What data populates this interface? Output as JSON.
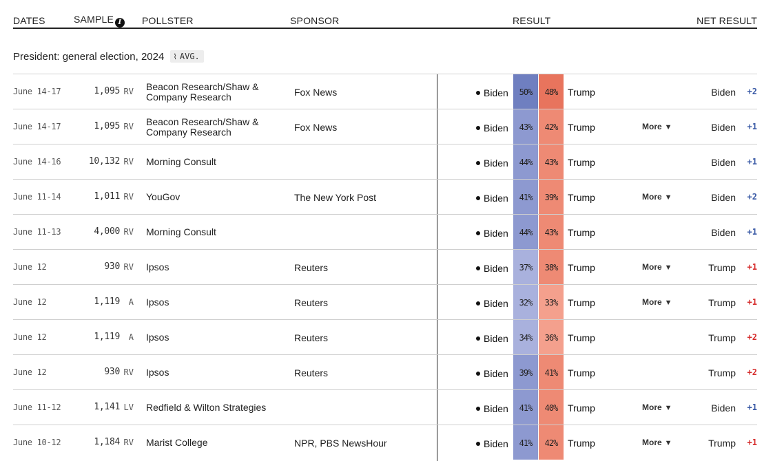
{
  "header": {
    "dates": "DATES",
    "sample": "SAMPLE",
    "pollster": "POLLSTER",
    "sponsor": "SPONSOR",
    "result": "RESULT",
    "net_result": "NET RESULT",
    "info_icon": "info-icon"
  },
  "section": {
    "title": "President: general election, 2024",
    "avg_label": "AVG.",
    "avg_icon": "pulse-icon"
  },
  "colors": {
    "dem_dark": "#6f7fc0",
    "dem_mid": "#8d99d0",
    "dem_light": "#a9b1dd",
    "rep_dark": "#e8745d",
    "rep_mid": "#ee8a74",
    "rep_light": "#f4a08d",
    "dem_text": "#3a5aa6",
    "rep_text": "#d62d2d"
  },
  "more_label": "More",
  "rows": [
    {
      "dates": "June 14-17",
      "sample": "1,095",
      "population": "RV",
      "pollster": "Beacon Research/Shaw & Company Research",
      "sponsor": "Fox News",
      "cand1": "Biden",
      "pct1": "50%",
      "pct2": "48%",
      "cand2": "Trump",
      "more": false,
      "net_leader": "Biden",
      "net_value": "+2",
      "net_party": "dem"
    },
    {
      "dates": "June 14-17",
      "sample": "1,095",
      "population": "RV",
      "pollster": "Beacon Research/Shaw & Company Research",
      "sponsor": "Fox News",
      "cand1": "Biden",
      "pct1": "43%",
      "pct2": "42%",
      "cand2": "Trump",
      "more": true,
      "net_leader": "Biden",
      "net_value": "+1",
      "net_party": "dem"
    },
    {
      "dates": "June 14-16",
      "sample": "10,132",
      "population": "RV",
      "pollster": "Morning Consult",
      "sponsor": "",
      "cand1": "Biden",
      "pct1": "44%",
      "pct2": "43%",
      "cand2": "Trump",
      "more": false,
      "net_leader": "Biden",
      "net_value": "+1",
      "net_party": "dem"
    },
    {
      "dates": "June 11-14",
      "sample": "1,011",
      "population": "RV",
      "pollster": "YouGov",
      "sponsor": "The New York Post",
      "cand1": "Biden",
      "pct1": "41%",
      "pct2": "39%",
      "cand2": "Trump",
      "more": true,
      "net_leader": "Biden",
      "net_value": "+2",
      "net_party": "dem"
    },
    {
      "dates": "June 11-13",
      "sample": "4,000",
      "population": "RV",
      "pollster": "Morning Consult",
      "sponsor": "",
      "cand1": "Biden",
      "pct1": "44%",
      "pct2": "43%",
      "cand2": "Trump",
      "more": false,
      "net_leader": "Biden",
      "net_value": "+1",
      "net_party": "dem"
    },
    {
      "dates": "June 12",
      "sample": "930",
      "population": "RV",
      "pollster": "Ipsos",
      "sponsor": "Reuters",
      "cand1": "Biden",
      "pct1": "37%",
      "pct2": "38%",
      "cand2": "Trump",
      "more": true,
      "net_leader": "Trump",
      "net_value": "+1",
      "net_party": "rep"
    },
    {
      "dates": "June 12",
      "sample": "1,119",
      "population": "A",
      "pollster": "Ipsos",
      "sponsor": "Reuters",
      "cand1": "Biden",
      "pct1": "32%",
      "pct2": "33%",
      "cand2": "Trump",
      "more": true,
      "net_leader": "Trump",
      "net_value": "+1",
      "net_party": "rep"
    },
    {
      "dates": "June 12",
      "sample": "1,119",
      "population": "A",
      "pollster": "Ipsos",
      "sponsor": "Reuters",
      "cand1": "Biden",
      "pct1": "34%",
      "pct2": "36%",
      "cand2": "Trump",
      "more": false,
      "net_leader": "Trump",
      "net_value": "+2",
      "net_party": "rep"
    },
    {
      "dates": "June 12",
      "sample": "930",
      "population": "RV",
      "pollster": "Ipsos",
      "sponsor": "Reuters",
      "cand1": "Biden",
      "pct1": "39%",
      "pct2": "41%",
      "cand2": "Trump",
      "more": false,
      "net_leader": "Trump",
      "net_value": "+2",
      "net_party": "rep"
    },
    {
      "dates": "June 11-12",
      "sample": "1,141",
      "population": "LV",
      "pollster": "Redfield & Wilton Strategies",
      "sponsor": "",
      "cand1": "Biden",
      "pct1": "41%",
      "pct2": "40%",
      "cand2": "Trump",
      "more": true,
      "net_leader": "Biden",
      "net_value": "+1",
      "net_party": "dem"
    },
    {
      "dates": "June 10-12",
      "sample": "1,184",
      "population": "RV",
      "pollster": "Marist College",
      "sponsor": "NPR, PBS NewsHour",
      "cand1": "Biden",
      "pct1": "41%",
      "pct2": "42%",
      "cand2": "Trump",
      "more": true,
      "net_leader": "Trump",
      "net_value": "+1",
      "net_party": "rep"
    }
  ]
}
